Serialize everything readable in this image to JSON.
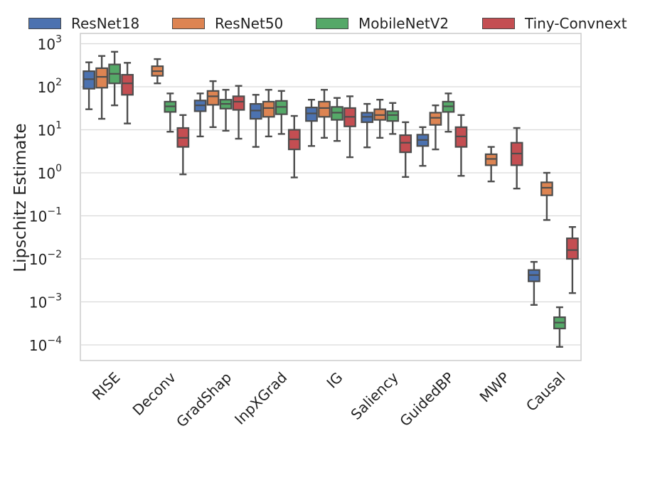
{
  "chart_data": {
    "type": "box",
    "title": "",
    "xlabel": "",
    "ylabel": "Lipschitz  Estimate",
    "yscale": "log",
    "ylim_exponent": [
      -4.4,
      3.3
    ],
    "y_ticks": [
      {
        "base": "10",
        "exp": "3"
      },
      {
        "base": "10",
        "exp": "2"
      },
      {
        "base": "10",
        "exp": "1"
      },
      {
        "base": "10",
        "exp": "0"
      },
      {
        "base": "10",
        "exp": "−1"
      },
      {
        "base": "10",
        "exp": "−2"
      },
      {
        "base": "10",
        "exp": "−3"
      },
      {
        "base": "10",
        "exp": "−4"
      }
    ],
    "categories": [
      "RISE",
      "Deconv",
      "GradShap",
      "InpXGrad",
      "IG",
      "Saliency",
      "GuidedBP",
      "MWP",
      "Causal"
    ],
    "series": [
      {
        "name": "ResNet18",
        "color": "#4c72b0",
        "boxes": [
          {
            "min": 30,
            "q1": 90,
            "median": 150,
            "q3": 230,
            "max": 370
          },
          null,
          {
            "min": 7,
            "q1": 27,
            "median": 37,
            "q3": 48,
            "max": 70
          },
          {
            "min": 4,
            "q1": 18,
            "median": 28,
            "q3": 40,
            "max": 65
          },
          {
            "min": 4.2,
            "q1": 16,
            "median": 24,
            "q3": 33,
            "max": 50
          },
          {
            "min": 3.9,
            "q1": 15,
            "median": 20,
            "q3": 25,
            "max": 40
          },
          {
            "min": 1.45,
            "q1": 4.2,
            "median": 5.8,
            "q3": 7.7,
            "max": 11.5
          },
          null,
          {
            "min": 0.00085,
            "q1": 0.003,
            "median": 0.0042,
            "q3": 0.0055,
            "max": 0.0085
          }
        ]
      },
      {
        "name": "ResNet50",
        "color": "#dd8452",
        "boxes": [
          {
            "min": 18,
            "q1": 95,
            "median": 170,
            "q3": 270,
            "max": 520
          },
          {
            "min": 120,
            "q1": 180,
            "median": 230,
            "q3": 300,
            "max": 440
          },
          {
            "min": 11.5,
            "q1": 38,
            "median": 60,
            "q3": 80,
            "max": 135
          },
          {
            "min": 7,
            "q1": 20,
            "median": 32,
            "q3": 45,
            "max": 85
          },
          {
            "min": 6.5,
            "q1": 20,
            "median": 32,
            "q3": 45,
            "max": 85
          },
          {
            "min": 6.5,
            "q1": 17,
            "median": 22,
            "q3": 30,
            "max": 50
          },
          {
            "min": 3.5,
            "q1": 13,
            "median": 19,
            "q3": 25,
            "max": 37
          },
          {
            "min": 0.63,
            "q1": 1.5,
            "median": 2.1,
            "q3": 2.7,
            "max": 4.0
          },
          {
            "min": 0.08,
            "q1": 0.3,
            "median": 0.45,
            "q3": 0.6,
            "max": 1.0
          }
        ]
      },
      {
        "name": "MobileNetV2",
        "color": "#55a868",
        "boxes": [
          {
            "min": 37,
            "q1": 120,
            "median": 200,
            "q3": 330,
            "max": 650
          },
          {
            "min": 9,
            "q1": 26,
            "median": 35,
            "q3": 45,
            "max": 70
          },
          {
            "min": 9.5,
            "q1": 31,
            "median": 40,
            "q3": 50,
            "max": 85
          },
          {
            "min": 8,
            "q1": 23,
            "median": 34,
            "q3": 47,
            "max": 80
          },
          {
            "min": 5.5,
            "q1": 17,
            "median": 25,
            "q3": 34,
            "max": 55
          },
          {
            "min": 8,
            "q1": 16,
            "median": 22,
            "q3": 27,
            "max": 42
          },
          {
            "min": 9,
            "q1": 26,
            "median": 35,
            "q3": 45,
            "max": 70
          },
          null,
          {
            "min": 9e-05,
            "q1": 0.00024,
            "median": 0.00033,
            "q3": 0.00044,
            "max": 0.00075
          }
        ]
      },
      {
        "name": "Tiny-Convnext",
        "color": "#c44e52",
        "boxes": [
          {
            "min": 14,
            "q1": 65,
            "median": 120,
            "q3": 190,
            "max": 360
          },
          {
            "min": 0.92,
            "q1": 4,
            "median": 6.5,
            "q3": 11,
            "max": 22
          },
          {
            "min": 6.2,
            "q1": 29,
            "median": 45,
            "q3": 60,
            "max": 105
          },
          {
            "min": 0.78,
            "q1": 3.5,
            "median": 6,
            "q3": 10,
            "max": 21
          },
          {
            "min": 2.3,
            "q1": 12,
            "median": 20,
            "q3": 32,
            "max": 60
          },
          {
            "min": 0.8,
            "q1": 3,
            "median": 5,
            "q3": 7.5,
            "max": 15
          },
          {
            "min": 0.85,
            "q1": 4,
            "median": 7,
            "q3": 11.5,
            "max": 22
          },
          {
            "min": 0.43,
            "q1": 1.5,
            "median": 2.8,
            "q3": 5,
            "max": 11
          },
          {
            "min": 0.0016,
            "q1": 0.01,
            "median": 0.016,
            "q3": 0.03,
            "max": 0.055
          }
        ]
      }
    ],
    "legend": [
      {
        "label": "ResNet18",
        "color": "#4c72b0"
      },
      {
        "label": "ResNet50",
        "color": "#dd8452"
      },
      {
        "label": "MobileNetV2",
        "color": "#55a868"
      },
      {
        "label": "Tiny-Convnext",
        "color": "#c44e52"
      }
    ],
    "legend_placement": "top",
    "grid": true,
    "colors": {
      "axis": "#cccccc",
      "grid": "#d9d9d9",
      "line": "#4d4d4d",
      "text": "#222222"
    }
  }
}
